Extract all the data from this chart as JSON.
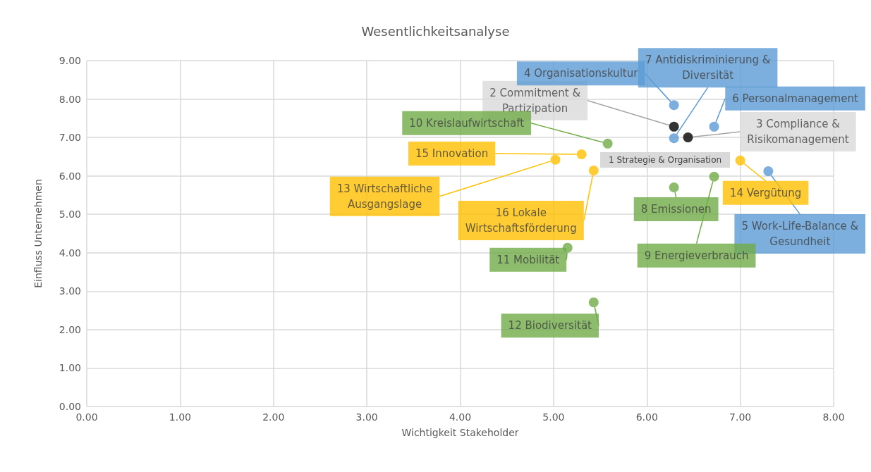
{
  "chart_data": {
    "type": "scatter",
    "title": "Wesentlichkeitsanalyse",
    "xlabel": "Wichtigkeit Stakeholder",
    "ylabel": "Einfluss Unternehmen",
    "xlim": [
      0,
      8
    ],
    "xticks": [
      {
        "value": 0,
        "label": "0.00"
      },
      {
        "value": 1,
        "label": "1.00"
      },
      {
        "value": 2,
        "label": "2.00"
      },
      {
        "value": 3,
        "label": "3.00"
      },
      {
        "value": 4,
        "label": "4.00"
      },
      {
        "value": 5,
        "label": "5.00"
      },
      {
        "value": 6,
        "label": "6.00"
      },
      {
        "value": 7,
        "label": "7.00"
      },
      {
        "value": 8,
        "label": "8.00"
      }
    ],
    "ylim": [
      0,
      9
    ],
    "yticks": [
      {
        "value": 0,
        "label": "0.00"
      },
      {
        "value": 1,
        "label": "1.00"
      },
      {
        "value": 2,
        "label": "2.00"
      },
      {
        "value": 3,
        "label": "3.00"
      },
      {
        "value": 4,
        "label": "4.00"
      },
      {
        "value": 5,
        "label": "5.00"
      },
      {
        "value": 6,
        "label": "6.00"
      },
      {
        "value": 7,
        "label": "7.00"
      },
      {
        "value": 8,
        "label": "8.00"
      },
      {
        "value": 9,
        "label": "9.00"
      }
    ],
    "grid": true,
    "marker": "circle",
    "series": [
      {
        "color": "#000000",
        "x": [
          null,
          6.29,
          6.44
        ],
        "values": [
          null,
          7.28,
          7.0
        ]
      },
      {
        "color": "#5b9bd5",
        "x": [
          6.29,
          7.3,
          6.72,
          6.29
        ],
        "values": [
          7.84,
          6.12,
          7.28,
          6.98
        ]
      },
      {
        "color": "#70ad47",
        "x": [
          6.29,
          6.72,
          5.58,
          5.15,
          5.43
        ],
        "values": [
          5.7,
          5.98,
          6.84,
          4.13,
          2.71
        ]
      },
      {
        "color": "#ffc000",
        "x": [
          5.02,
          7.0,
          5.3,
          5.43
        ],
        "values": [
          6.42,
          6.4,
          6.56,
          6.14
        ]
      }
    ],
    "annotations": [
      "1 Strategie & Organisation",
      {
        "text": "2 Commitment &\nPartizipation",
        "x": 6.29,
        "y": 7.28
      },
      {
        "text": "3 Compliance &\nRisikomanagement",
        "x": 6.44,
        "y": 7.0
      },
      {
        "text": "4 Organisationskultur",
        "x": 6.29,
        "y": 7.84
      },
      {
        "text": "5 Work-Life-Balance &\nGesundheit",
        "x": 7.3,
        "y": 6.12
      },
      {
        "text": "6 Personalmanagement",
        "x": 6.72,
        "y": 7.28
      },
      {
        "text": "7 Antidiskriminierung &\nDiversität",
        "x": 6.29,
        "y": 6.98
      },
      {
        "text": "8 Emissionen",
        "x": 6.29,
        "y": 5.7
      },
      {
        "text": "9 Energieverbrauch",
        "x": 6.72,
        "y": 5.98
      },
      {
        "text": "10 Kreislaufwirtschaft",
        "x": 5.58,
        "y": 6.84
      },
      {
        "text": "11 Mobilität",
        "x": 5.15,
        "y": 4.13
      },
      {
        "text": "12 Biodiversität",
        "x": 5.43,
        "y": 2.71
      },
      {
        "text": "13 Wirtschaftliche\nAusgangslage",
        "x": 5.02,
        "y": 6.42
      },
      {
        "text": "14 Vergütung",
        "x": 7.0,
        "y": 6.4
      },
      {
        "text": "15 Innovation",
        "x": 5.3,
        "y": 6.56
      },
      {
        "text": "16 Lokale\nWirtschaftsförderung",
        "x": 5.43,
        "y": 6.14
      }
    ]
  }
}
